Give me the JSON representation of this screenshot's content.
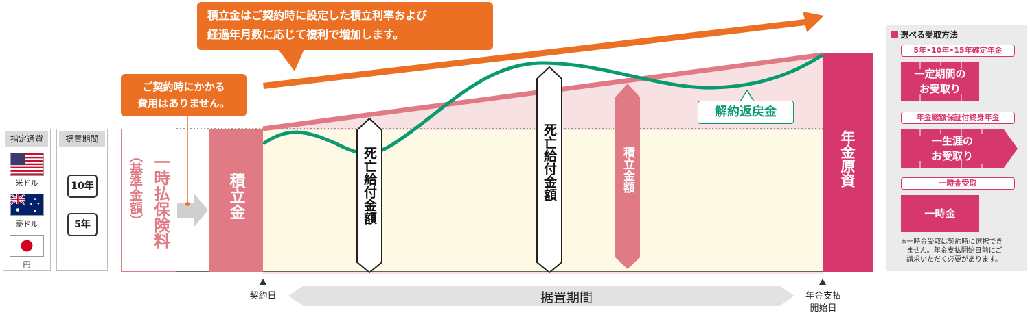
{
  "callouts": {
    "top": [
      "積立金はご契約時に設定した積立利率および",
      "経過年月数に応じて複利で増加します。"
    ],
    "fee": [
      "ご契約時にかかる",
      "費用はありません。"
    ]
  },
  "currency": {
    "header": "指定通貨",
    "items": [
      {
        "label": "米ドル",
        "icon": "us-flag"
      },
      {
        "label": "豪ドル",
        "icon": "au-flag"
      },
      {
        "label": "円",
        "icon": "jp-flag"
      }
    ]
  },
  "deferral_column": {
    "header": "据置期間",
    "options": [
      "10年",
      "5年"
    ]
  },
  "premium_label": "一時払保険料",
  "premium_sub": "（基準金額）",
  "reserve_label": "積立金",
  "death_benefit_label": "死亡給付金額",
  "reserve_amount_label": "積立金額",
  "surrender_label": "解約返戻金",
  "annuity_fund_label": "年金原資",
  "timeline": {
    "start": "契約日",
    "period": "据置期間",
    "end": [
      "年金支払",
      "開始日"
    ]
  },
  "receipt_panel": {
    "title": "選べる受取方法",
    "sections": [
      {
        "header": "5年•10年•15年確定年金",
        "box": [
          "一定期間の",
          "お受取り"
        ]
      },
      {
        "header": "年金総額保証付終身年金",
        "box": [
          "一生涯の",
          "お受取り"
        ]
      },
      {
        "header": "一時金受取",
        "box": [
          "一時金"
        ]
      }
    ],
    "note": [
      "※一時金受取は契約時に選択でき",
      "ません。年金支払開始日前にご",
      "請求いただく必要があります。"
    ]
  },
  "colors": {
    "magenta": "#d6386d",
    "pink": "#e07b86",
    "orange": "#ec7023",
    "green": "#0a9a70",
    "cream": "#fef9e4",
    "light_pink": "#f8e1e3"
  }
}
